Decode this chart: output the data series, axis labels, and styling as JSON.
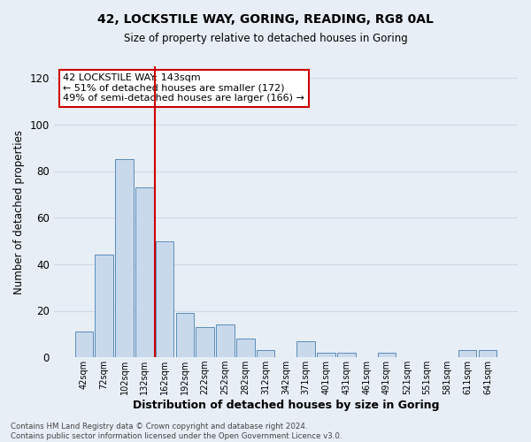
{
  "title": "42, LOCKSTILE WAY, GORING, READING, RG8 0AL",
  "subtitle": "Size of property relative to detached houses in Goring",
  "xlabel": "Distribution of detached houses by size in Goring",
  "ylabel": "Number of detached properties",
  "bar_labels": [
    "42sqm",
    "72sqm",
    "102sqm",
    "132sqm",
    "162sqm",
    "192sqm",
    "222sqm",
    "252sqm",
    "282sqm",
    "312sqm",
    "342sqm",
    "371sqm",
    "401sqm",
    "431sqm",
    "461sqm",
    "491sqm",
    "521sqm",
    "551sqm",
    "581sqm",
    "611sqm",
    "641sqm"
  ],
  "bar_values": [
    11,
    44,
    85,
    73,
    50,
    19,
    13,
    14,
    8,
    3,
    0,
    7,
    2,
    2,
    0,
    2,
    0,
    0,
    0,
    3,
    3
  ],
  "bar_color": "#c9d9ec",
  "bar_edge_color": "#5b8db8",
  "grid_color": "#d0d8e8",
  "background_color": "#e8eef5",
  "vline_color": "#cc0000",
  "vline_x_index": 3,
  "annotation_title": "42 LOCKSTILE WAY: 143sqm",
  "annotation_line1": "← 51% of detached houses are smaller (172)",
  "annotation_line2": "49% of semi-detached houses are larger (166) →",
  "annotation_box_color": "#ffffff",
  "annotation_box_edge": "#cc0000",
  "footer_line1": "Contains HM Land Registry data © Crown copyright and database right 2024.",
  "footer_line2": "Contains public sector information licensed under the Open Government Licence v3.0.",
  "ylim": [
    0,
    125
  ],
  "yticks": [
    0,
    20,
    40,
    60,
    80,
    100,
    120
  ]
}
